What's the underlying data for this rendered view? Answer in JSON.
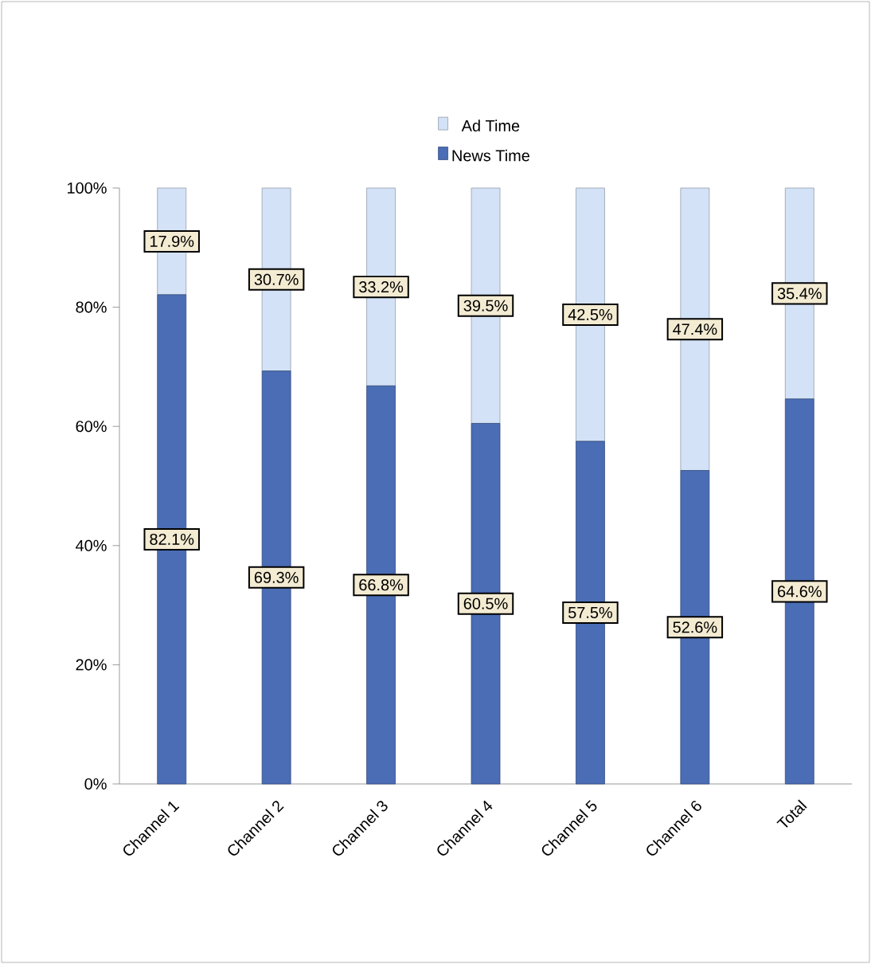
{
  "chart_data": {
    "type": "bar",
    "stacked": true,
    "legend": "top",
    "ylim": [
      0,
      100
    ],
    "yticks": [
      {
        "value": 0,
        "label": "0%"
      },
      {
        "value": 20,
        "label": "20%"
      },
      {
        "value": 40,
        "label": "40%"
      },
      {
        "value": 60,
        "label": "60%"
      },
      {
        "value": 80,
        "label": "80%"
      },
      {
        "value": 100,
        "label": "100%"
      }
    ],
    "categories": [
      "Channel 1",
      "Channel 2",
      "Channel 3",
      "Channel 4",
      "Channel 5",
      "Channel 6",
      "Total"
    ],
    "series": [
      {
        "name": "News Time",
        "color": "#4a6db5",
        "values": [
          82.1,
          69.3,
          66.8,
          60.5,
          57.5,
          52.6,
          64.6
        ],
        "value_labels": [
          "82.1%",
          "69.3%",
          "66.8%",
          "60.5%",
          "57.5%",
          "52.6%",
          "64.6%"
        ]
      },
      {
        "name": "Ad Time",
        "color": "#d3e2f6",
        "values": [
          17.9,
          30.7,
          33.2,
          39.5,
          42.5,
          47.4,
          35.4
        ],
        "value_labels": [
          "17.9%",
          "30.7%",
          "33.2%",
          "39.5%",
          "42.5%",
          "47.4%",
          "35.4%"
        ]
      }
    ]
  }
}
